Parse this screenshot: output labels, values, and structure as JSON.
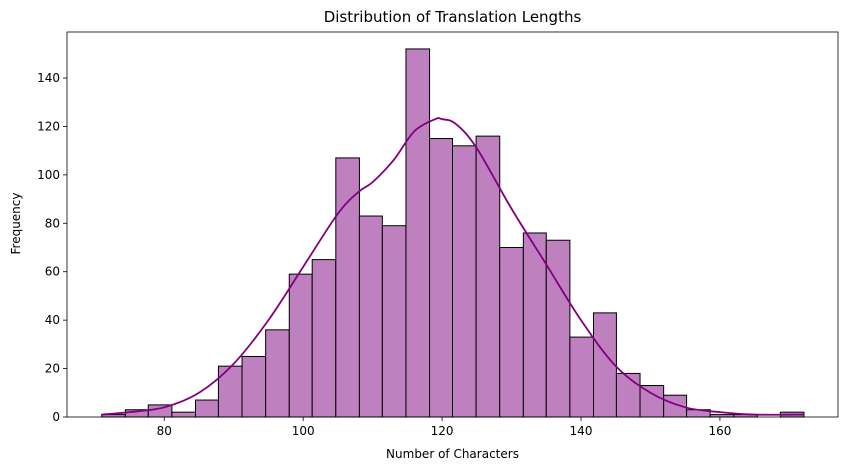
{
  "chart_data": {
    "type": "bar",
    "subtype": "histogram-with-kde",
    "title": "Distribution of Translation Lengths",
    "xlabel": "Number of Characters",
    "ylabel": "Frequency",
    "xlim": [
      66,
      177
    ],
    "ylim": [
      0,
      159
    ],
    "xticks": [
      80,
      100,
      120,
      140,
      160
    ],
    "yticks": [
      0,
      20,
      40,
      60,
      80,
      100,
      120,
      140
    ],
    "grid": false,
    "colors": {
      "bar_fill": "#bf80bf",
      "bar_edge": "#000000",
      "kde_line": "#800080"
    },
    "bins": [
      {
        "x0": 71.0,
        "x1": 74.4,
        "count": 1
      },
      {
        "x0": 74.4,
        "x1": 77.7,
        "count": 3
      },
      {
        "x0": 77.7,
        "x1": 81.1,
        "count": 5
      },
      {
        "x0": 81.1,
        "x1": 84.5,
        "count": 2
      },
      {
        "x0": 84.5,
        "x1": 87.8,
        "count": 7
      },
      {
        "x0": 87.8,
        "x1": 91.2,
        "count": 21
      },
      {
        "x0": 91.2,
        "x1": 94.6,
        "count": 25
      },
      {
        "x0": 94.6,
        "x1": 98.0,
        "count": 36
      },
      {
        "x0": 98.0,
        "x1": 101.3,
        "count": 59
      },
      {
        "x0": 101.3,
        "x1": 104.7,
        "count": 65
      },
      {
        "x0": 104.7,
        "x1": 108.1,
        "count": 107
      },
      {
        "x0": 108.1,
        "x1": 111.4,
        "count": 83
      },
      {
        "x0": 111.4,
        "x1": 114.8,
        "count": 79
      },
      {
        "x0": 114.8,
        "x1": 118.2,
        "count": 152
      },
      {
        "x0": 118.2,
        "x1": 121.5,
        "count": 115
      },
      {
        "x0": 121.5,
        "x1": 124.9,
        "count": 112
      },
      {
        "x0": 124.9,
        "x1": 128.3,
        "count": 116
      },
      {
        "x0": 128.3,
        "x1": 131.7,
        "count": 70
      },
      {
        "x0": 131.7,
        "x1": 135.0,
        "count": 76
      },
      {
        "x0": 135.0,
        "x1": 138.4,
        "count": 73
      },
      {
        "x0": 138.4,
        "x1": 141.8,
        "count": 33
      },
      {
        "x0": 141.8,
        "x1": 145.1,
        "count": 43
      },
      {
        "x0": 145.1,
        "x1": 148.5,
        "count": 18
      },
      {
        "x0": 148.5,
        "x1": 151.9,
        "count": 13
      },
      {
        "x0": 151.9,
        "x1": 155.2,
        "count": 9
      },
      {
        "x0": 155.2,
        "x1": 158.6,
        "count": 3
      },
      {
        "x0": 158.6,
        "x1": 162.0,
        "count": 1
      },
      {
        "x0": 162.0,
        "x1": 165.4,
        "count": 1
      },
      {
        "x0": 165.4,
        "x1": 168.7,
        "count": 0
      },
      {
        "x0": 168.7,
        "x1": 172.1,
        "count": 2
      }
    ],
    "kde": {
      "x": [
        71,
        75,
        80,
        85,
        90,
        95,
        100,
        105,
        108,
        110,
        113,
        116,
        119,
        120,
        122,
        125,
        130,
        135,
        140,
        145,
        150,
        155,
        160,
        165,
        172
      ],
      "y": [
        1,
        2,
        4,
        10,
        22,
        40,
        62,
        84,
        93,
        97,
        106,
        118,
        123,
        123,
        121,
        111,
        86,
        63,
        40,
        21,
        10,
        4,
        2,
        1,
        1
      ]
    }
  }
}
